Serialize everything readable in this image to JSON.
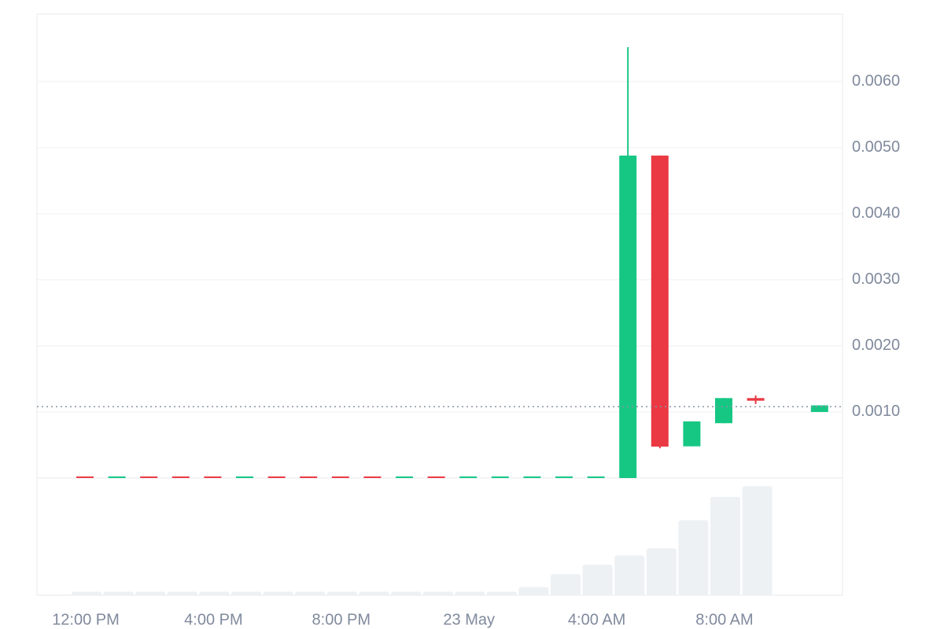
{
  "chart_data": {
    "type": "candlestick",
    "categories": [
      "12:00 PM",
      null,
      null,
      null,
      "4:00 PM",
      null,
      null,
      null,
      "8:00 PM",
      null,
      null,
      null,
      "23 May",
      null,
      null,
      null,
      "4:00 AM",
      null,
      null,
      null,
      "8:00 AM",
      null,
      null,
      null
    ],
    "open": [
      2.4e-05,
      2e-05,
      2.4e-05,
      2.4e-05,
      2.4e-05,
      2e-05,
      2.4e-05,
      2.4e-05,
      2.4e-05,
      2.4e-05,
      2e-05,
      2.4e-05,
      2e-05,
      2e-05,
      2e-05,
      2e-05,
      2e-05,
      0,
      0.00488,
      0.00048,
      0.00083,
      0.00121,
      null,
      0.001
    ],
    "high": [
      2.4e-05,
      2.4e-05,
      2.4e-05,
      2.4e-05,
      2.4e-05,
      2.4e-05,
      2.4e-05,
      2.4e-05,
      2.4e-05,
      2.4e-05,
      2.4e-05,
      2.4e-05,
      2.4e-05,
      2.4e-05,
      2.4e-05,
      2.4e-05,
      2.4e-05,
      0.00652,
      0.00488,
      0.000857,
      0.00121,
      0.00125,
      null,
      0.0011
    ],
    "low": [
      2e-05,
      2e-05,
      2e-05,
      2e-05,
      2e-05,
      2e-05,
      2e-05,
      2e-05,
      2e-05,
      2e-05,
      2e-05,
      2e-05,
      2e-05,
      2e-05,
      2e-05,
      2e-05,
      2e-05,
      0,
      0.00045,
      0.00048,
      0.00083,
      0.00112,
      null,
      0.001
    ],
    "close": [
      2e-05,
      2.4e-05,
      2e-05,
      2e-05,
      2e-05,
      2.4e-05,
      2e-05,
      2e-05,
      2e-05,
      2e-05,
      2.4e-05,
      2e-05,
      2.4e-05,
      2.4e-05,
      2.4e-05,
      2.4e-05,
      2.4e-05,
      0.00488,
      0.000476,
      0.000857,
      0.00121,
      0.00117,
      null,
      0.0011
    ],
    "volume": [
      3,
      3,
      3,
      3,
      3,
      3,
      3,
      3,
      3,
      3,
      3,
      3,
      3,
      3,
      7,
      18,
      26,
      34,
      40,
      64,
      84,
      93,
      null,
      null
    ],
    "volume_lim": [
      0,
      100
    ],
    "up_color": "#16c784",
    "down_color": "#ea3943",
    "volume_color": "#eef1f4",
    "last_price": 0.00108,
    "ylim": [
      0,
      0.00702
    ],
    "yticks": [
      {
        "value": 0.001,
        "label": "0.0010"
      },
      {
        "value": 0.002,
        "label": "0.0020"
      },
      {
        "value": 0.003,
        "label": "0.0030"
      },
      {
        "value": 0.004,
        "label": "0.0040"
      },
      {
        "value": 0.005,
        "label": "0.0050"
      },
      {
        "value": 0.006,
        "label": "0.0060"
      }
    ],
    "grid": true
  }
}
